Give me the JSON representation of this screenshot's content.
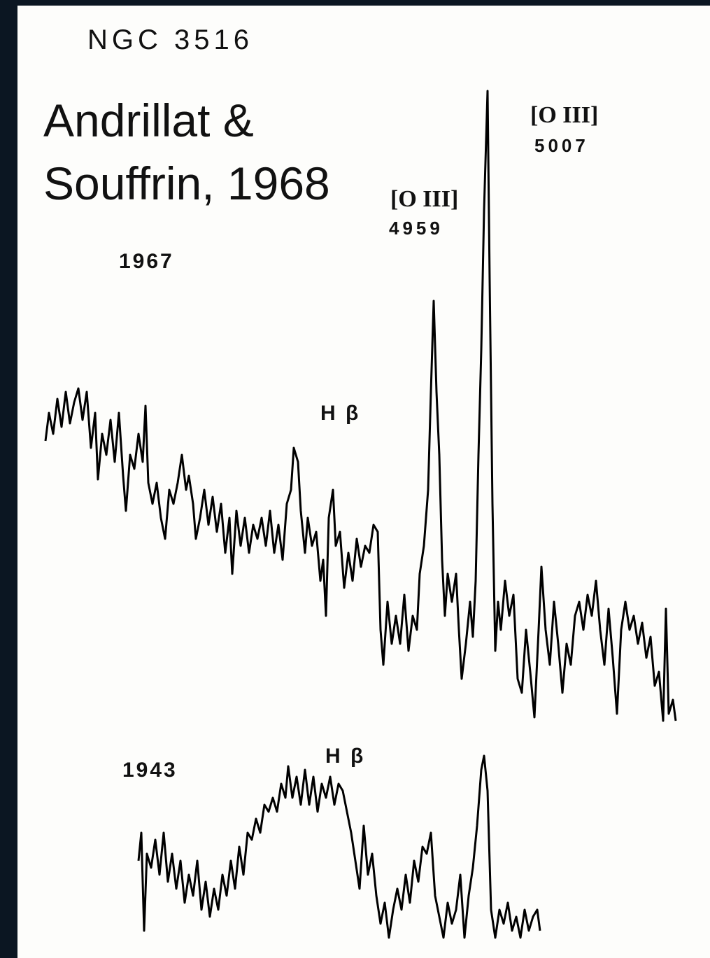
{
  "figure": {
    "object": "NGC 3516",
    "citation": [
      "Andrillat &",
      "Souffrin, 1968"
    ],
    "lines": [
      {
        "ion": "[O III]",
        "wavelength": "4959"
      },
      {
        "ion": "[O III]",
        "wavelength": "5007"
      }
    ],
    "spectra": [
      {
        "year": "1967",
        "line": "H β"
      },
      {
        "year": "1943",
        "line": "H β"
      }
    ]
  }
}
